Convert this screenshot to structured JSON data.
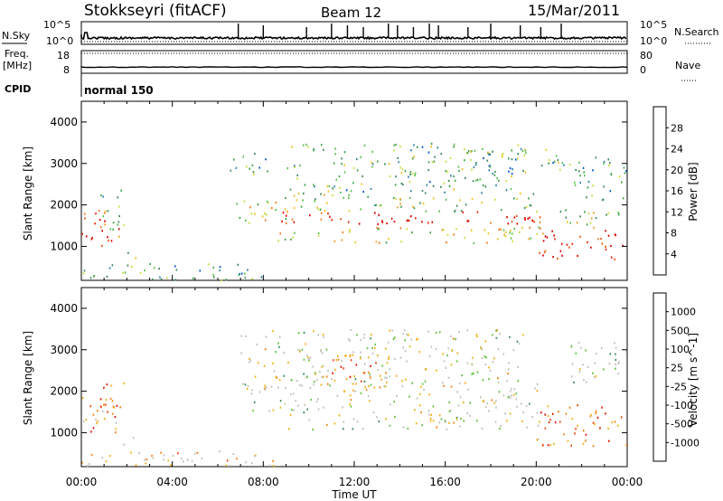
{
  "header": {
    "station": "Stokkseyri (fitACF)",
    "beam": "Beam 12",
    "date": "15/Mar/2011"
  },
  "panel_labels": {
    "nsky": "N.Sky",
    "nsearch": "N.Search",
    "freq": "Freq.",
    "freq_unit": "[MHz]",
    "nave": "Nave",
    "cpid": "CPID",
    "cpid_value": "normal 150"
  },
  "chart_data": [
    {
      "type": "line",
      "panel": "noise",
      "series": [
        {
          "name": "N.Sky",
          "style": "solid"
        },
        {
          "name": "N.Search",
          "style": "dotted"
        }
      ],
      "left_ticks": [
        "10^5",
        "10^0"
      ],
      "right_ticks": [
        "10^5",
        "10^0"
      ],
      "spikes_ut_hours": [
        6.9,
        8.0,
        9.9,
        11.0,
        11.7,
        12.4,
        13.5,
        13.9,
        14.6,
        15.3,
        15.7,
        17.0,
        18.0,
        19.3,
        20.2,
        21.1
      ],
      "baseline": 0.72
    },
    {
      "type": "line",
      "panel": "frequency",
      "series": [
        {
          "name": "Freq.",
          "style": "solid",
          "value": 10
        },
        {
          "name": "Nave",
          "style": "dotted",
          "value": 80
        }
      ],
      "left_ticks": [
        "18",
        "8"
      ],
      "right_ticks": [
        "80",
        "0"
      ]
    },
    {
      "type": "heatmap",
      "panel": "power",
      "ylabel": "Slant Range [km]",
      "ylim": [
        180,
        4500
      ],
      "yticks": [
        1000,
        2000,
        3000,
        4000
      ],
      "xlim": [
        0,
        24
      ],
      "colorbar": {
        "label": "Power [dB]",
        "ticks": [
          "4",
          "8",
          "12",
          "16",
          "20",
          "24",
          "28"
        ],
        "colors": [
          "#0000e0",
          "#0055cc",
          "#2e7fa8",
          "#3c8a5a",
          "#3aa04a",
          "#58c04a",
          "#c8dc3a",
          "#f0c020",
          "#f0a020",
          "#f07818",
          "#f05010",
          "#e82000",
          "#d80000"
        ]
      },
      "regions": [
        {
          "t0": 0.0,
          "t1": 1.7,
          "r0": 900,
          "r1": 1900,
          "level": 0.9
        },
        {
          "t0": 0.7,
          "t1": 1.9,
          "r0": 1400,
          "r1": 2400,
          "level": 0.45
        },
        {
          "t0": 1.8,
          "t1": 2.5,
          "r0": 700,
          "r1": 900,
          "level": 0.4
        },
        {
          "t0": 0.0,
          "t1": 8.5,
          "r0": 200,
          "r1": 600,
          "level": 0.3
        },
        {
          "t0": 6.8,
          "t1": 9.0,
          "r0": 1500,
          "r1": 2200,
          "level": 0.55
        },
        {
          "t0": 8.6,
          "t1": 20.3,
          "r0": 1500,
          "r1": 1850,
          "level": 0.95
        },
        {
          "t0": 8.4,
          "t1": 20.3,
          "r0": 1100,
          "r1": 1500,
          "level": 0.55
        },
        {
          "t0": 8.8,
          "t1": 20.3,
          "r0": 1850,
          "r1": 2300,
          "level": 0.45
        },
        {
          "t0": 9.0,
          "t1": 19.5,
          "r0": 2300,
          "r1": 3500,
          "level": 0.35
        },
        {
          "t0": 6.5,
          "t1": 8.2,
          "r0": 2700,
          "r1": 3300,
          "level": 0.3
        },
        {
          "t0": 20.0,
          "t1": 24.0,
          "r0": 700,
          "r1": 1400,
          "level": 0.95
        },
        {
          "t0": 21.0,
          "t1": 24.0,
          "r0": 1400,
          "r1": 1900,
          "level": 0.45
        },
        {
          "t0": 21.5,
          "t1": 24.0,
          "r0": 2100,
          "r1": 3200,
          "level": 0.3
        },
        {
          "t0": 16.5,
          "t1": 21.5,
          "r0": 2800,
          "r1": 3400,
          "level": 0.35
        }
      ]
    },
    {
      "type": "heatmap",
      "panel": "velocity",
      "ylabel": "Slant Range [km]",
      "xlabel": "Time UT",
      "ylim": [
        180,
        4500
      ],
      "yticks": [
        1000,
        2000,
        3000,
        4000
      ],
      "xlim": [
        0,
        24
      ],
      "xticks": [
        "00:00",
        "04:00",
        "08:00",
        "12:00",
        "16:00",
        "20:00",
        "00:00"
      ],
      "colorbar": {
        "label": "Velocity [m s^-1]",
        "ticks": [
          "1000",
          "500",
          "100",
          "25",
          "-25",
          "-100",
          "-500",
          "-1000"
        ],
        "colors": [
          "#1e3ea0",
          "#2a70c8",
          "#3c8a5a",
          "#60c040",
          "#c0c0b8",
          "#c0c0b8",
          "#f0b018",
          "#f08010",
          "#f04010",
          "#e01000"
        ]
      },
      "regions": [
        {
          "t0": 0.0,
          "t1": 1.7,
          "r0": 900,
          "r1": 1900,
          "level": 0.75
        },
        {
          "t0": 0.7,
          "t1": 1.9,
          "r0": 1400,
          "r1": 2300,
          "level": 0.8
        },
        {
          "t0": 1.8,
          "t1": 2.5,
          "r0": 700,
          "r1": 900,
          "level": 0.35
        },
        {
          "t0": 0.0,
          "t1": 8.5,
          "r0": 200,
          "r1": 600,
          "level": 0.6
        },
        {
          "t0": 6.8,
          "t1": 9.0,
          "r0": 1500,
          "r1": 2200,
          "level": 0.5
        },
        {
          "t0": 8.6,
          "t1": 20.3,
          "r0": 1100,
          "r1": 2300,
          "level": 0.5
        },
        {
          "t0": 7.0,
          "t1": 19.5,
          "r0": 2300,
          "r1": 3500,
          "level": 0.5
        },
        {
          "t0": 11.0,
          "t1": 13.5,
          "r0": 2000,
          "r1": 2900,
          "level": 0.8
        },
        {
          "t0": 20.0,
          "t1": 24.0,
          "r0": 700,
          "r1": 1700,
          "level": 0.8
        },
        {
          "t0": 21.5,
          "t1": 24.0,
          "r0": 2100,
          "r1": 3200,
          "level": 0.45
        }
      ]
    }
  ]
}
